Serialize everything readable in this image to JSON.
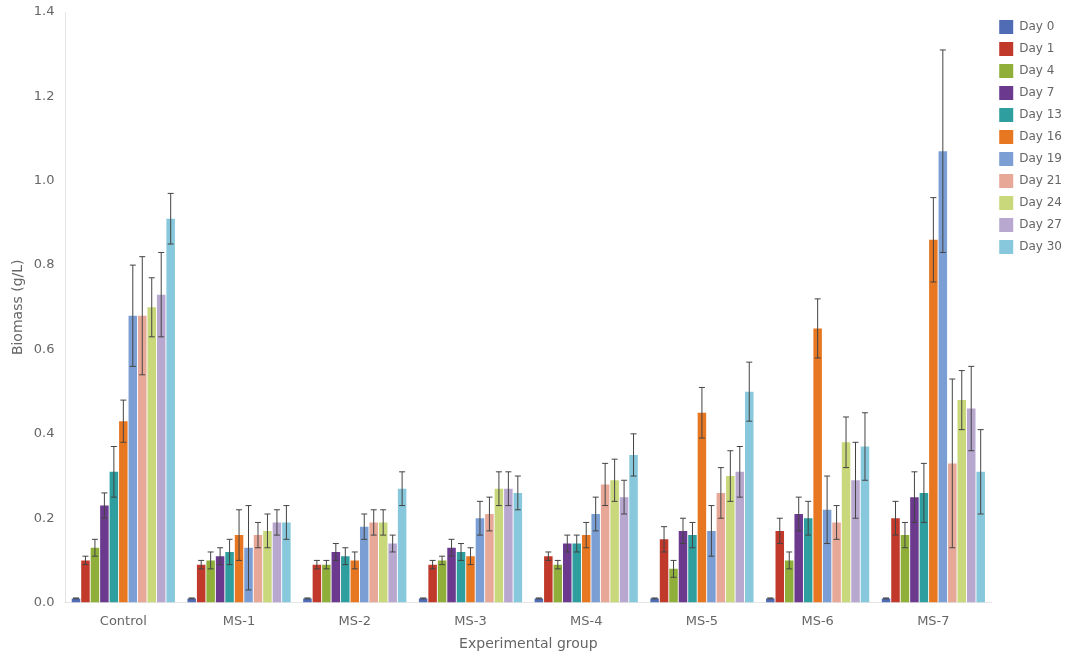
{
  "chart_data": {
    "type": "bar",
    "xlabel": "Experimental group",
    "ylabel": "Biomass (g/L)",
    "categories": [
      "Control",
      "MS-1",
      "MS-2",
      "MS-3",
      "MS-4",
      "MS-5",
      "MS-6",
      "MS-7"
    ],
    "series": [
      {
        "name": "Day 0",
        "color": "#4F6CB4",
        "values": [
          0.01,
          0.01,
          0.01,
          0.01,
          0.01,
          0.01,
          0.01,
          0.01
        ],
        "errors": [
          0.001,
          0.001,
          0.001,
          0.001,
          0.001,
          0.001,
          0.001,
          0.001
        ]
      },
      {
        "name": "Day 1",
        "color": "#C0392B",
        "values": [
          0.1,
          0.09,
          0.09,
          0.09,
          0.11,
          0.15,
          0.17,
          0.2
        ],
        "errors": [
          0.01,
          0.01,
          0.01,
          0.01,
          0.01,
          0.03,
          0.03,
          0.04
        ]
      },
      {
        "name": "Day 4",
        "color": "#8FAF3A",
        "values": [
          0.13,
          0.1,
          0.09,
          0.1,
          0.09,
          0.08,
          0.1,
          0.16
        ],
        "errors": [
          0.02,
          0.02,
          0.01,
          0.01,
          0.01,
          0.02,
          0.02,
          0.03
        ]
      },
      {
        "name": "Day 7",
        "color": "#6B3A8F",
        "values": [
          0.23,
          0.11,
          0.12,
          0.13,
          0.14,
          0.17,
          0.21,
          0.25
        ],
        "errors": [
          0.03,
          0.02,
          0.02,
          0.02,
          0.02,
          0.03,
          0.04,
          0.06
        ]
      },
      {
        "name": "Day 13",
        "color": "#2E9E9E",
        "values": [
          0.31,
          0.12,
          0.11,
          0.12,
          0.14,
          0.16,
          0.2,
          0.26
        ],
        "errors": [
          0.06,
          0.03,
          0.02,
          0.02,
          0.02,
          0.03,
          0.04,
          0.07
        ]
      },
      {
        "name": "Day 16",
        "color": "#E87722",
        "values": [
          0.43,
          0.16,
          0.1,
          0.11,
          0.16,
          0.45,
          0.65,
          0.86
        ],
        "errors": [
          0.05,
          0.06,
          0.02,
          0.02,
          0.03,
          0.06,
          0.07,
          0.1
        ]
      },
      {
        "name": "Day 19",
        "color": "#7B9FD4",
        "values": [
          0.68,
          0.13,
          0.18,
          0.2,
          0.21,
          0.17,
          0.22,
          1.07
        ],
        "errors": [
          0.12,
          0.1,
          0.03,
          0.04,
          0.04,
          0.06,
          0.08,
          0.24
        ]
      },
      {
        "name": "Day 21",
        "color": "#E8A898",
        "values": [
          0.68,
          0.16,
          0.19,
          0.21,
          0.28,
          0.26,
          0.19,
          0.33
        ],
        "errors": [
          0.14,
          0.03,
          0.03,
          0.04,
          0.05,
          0.06,
          0.04,
          0.2
        ]
      },
      {
        "name": "Day 24",
        "color": "#C8D87A",
        "values": [
          0.7,
          0.17,
          0.19,
          0.27,
          0.29,
          0.3,
          0.38,
          0.48
        ],
        "errors": [
          0.07,
          0.04,
          0.03,
          0.04,
          0.05,
          0.06,
          0.06,
          0.07
        ]
      },
      {
        "name": "Day 27",
        "color": "#B8A8D0",
        "values": [
          0.73,
          0.19,
          0.14,
          0.27,
          0.25,
          0.31,
          0.29,
          0.46
        ],
        "errors": [
          0.1,
          0.03,
          0.02,
          0.04,
          0.04,
          0.06,
          0.09,
          0.1
        ]
      },
      {
        "name": "Day 30",
        "color": "#88C8DC",
        "values": [
          0.91,
          0.19,
          0.27,
          0.26,
          0.35,
          0.5,
          0.37,
          0.31
        ],
        "errors": [
          0.06,
          0.04,
          0.04,
          0.04,
          0.05,
          0.07,
          0.08,
          0.1
        ]
      }
    ],
    "ylim": [
      0.0,
      1.4
    ],
    "yticks": [
      {
        "value": 0.0,
        "label": "0.0"
      },
      0.2,
      0.4,
      0.6,
      0.8,
      {
        "value": 1.0,
        "label": "1.0"
      },
      1.2,
      1.4
    ],
    "grid": false,
    "legend": "upper right"
  }
}
